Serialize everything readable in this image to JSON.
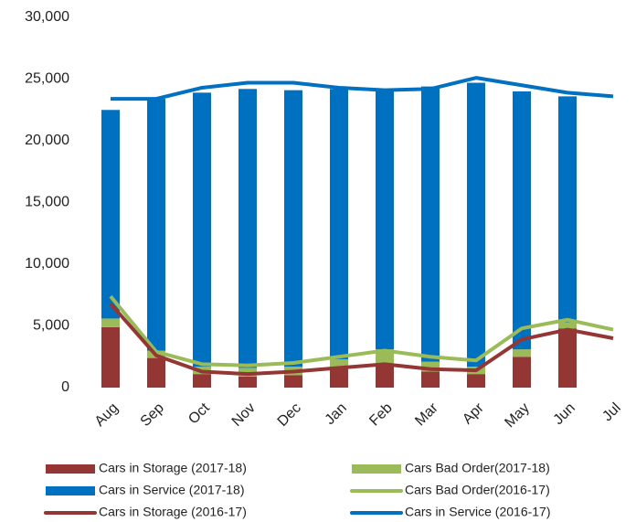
{
  "chart_data": {
    "type": "bar",
    "categories": [
      "Aug",
      "Sep",
      "Oct",
      "Nov",
      "Dec",
      "Jan",
      "Feb",
      "Mar",
      "Apr",
      "May",
      "Jun",
      "Jul"
    ],
    "series": [
      {
        "name": "Cars in Storage (2017-18)",
        "type": "bar",
        "color": "#943634",
        "values": [
          4900,
          2400,
          1100,
          900,
          1000,
          1700,
          1900,
          1300,
          1100,
          2500,
          4800,
          null
        ]
      },
      {
        "name": "Cars Bad Order(2017-18)",
        "type": "bar",
        "color": "#9bbb59",
        "values": [
          700,
          600,
          600,
          700,
          700,
          600,
          1200,
          800,
          600,
          600,
          500,
          null
        ]
      },
      {
        "name": "Cars in Service (2017-18)",
        "type": "bar",
        "color": "#0070c0",
        "values": [
          16900,
          20400,
          22200,
          22600,
          22400,
          21900,
          20900,
          22300,
          23000,
          20900,
          18300,
          null
        ]
      },
      {
        "name": "Cars Bad Order(2016-17)",
        "type": "line",
        "color": "#9bbb59",
        "values": [
          7400,
          2900,
          1900,
          1800,
          2000,
          2500,
          3000,
          2500,
          2200,
          4800,
          5500,
          4700
        ]
      },
      {
        "name": "Cars in Storage (2016-17)",
        "type": "line",
        "color": "#943634",
        "values": [
          6800,
          2600,
          1300,
          1100,
          1300,
          1600,
          1900,
          1500,
          1400,
          3900,
          4700,
          4000
        ]
      },
      {
        "name": "Cars in Service (2016-17)",
        "type": "line",
        "color": "#0070c0",
        "values": [
          23400,
          23400,
          24300,
          24700,
          24700,
          24300,
          24100,
          24200,
          25100,
          24500,
          23900,
          23600
        ]
      }
    ],
    "stacked": true,
    "ylim": [
      0,
      30000
    ],
    "yticks": [
      0,
      {
        "value": 5000,
        "label": "5,000"
      },
      {
        "value": 10000,
        "label": "10,000"
      },
      {
        "value": 15000,
        "label": "15,000"
      },
      {
        "value": 20000,
        "label": "20,000"
      },
      {
        "value": 25000,
        "label": "25,000"
      },
      {
        "value": 30000,
        "label": "30,000"
      }
    ],
    "grid": false,
    "legend": "bottom"
  }
}
